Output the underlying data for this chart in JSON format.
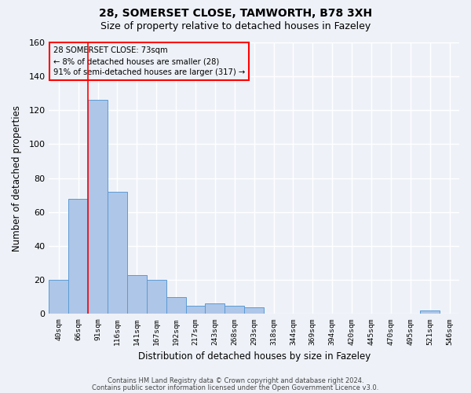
{
  "title1": "28, SOMERSET CLOSE, TAMWORTH, B78 3XH",
  "title2": "Size of property relative to detached houses in Fazeley",
  "xlabel": "Distribution of detached houses by size in Fazeley",
  "ylabel": "Number of detached properties",
  "bins": [
    "40sqm",
    "66sqm",
    "91sqm",
    "116sqm",
    "141sqm",
    "167sqm",
    "192sqm",
    "217sqm",
    "243sqm",
    "268sqm",
    "293sqm",
    "318sqm",
    "344sqm",
    "369sqm",
    "394sqm",
    "420sqm",
    "445sqm",
    "470sqm",
    "495sqm",
    "521sqm",
    "546sqm"
  ],
  "values": [
    20,
    68,
    126,
    72,
    23,
    20,
    10,
    5,
    6,
    5,
    4,
    0,
    0,
    0,
    0,
    0,
    0,
    0,
    0,
    2,
    0
  ],
  "bar_color": "#aec6e8",
  "bar_edge_color": "#5b9bd5",
  "red_line_x": 1.5,
  "annotation_box_text": "28 SOMERSET CLOSE: 73sqm\n← 8% of detached houses are smaller (28)\n91% of semi-detached houses are larger (317) →",
  "ylim": [
    0,
    160
  ],
  "yticks": [
    0,
    20,
    40,
    60,
    80,
    100,
    120,
    140,
    160
  ],
  "footer1": "Contains HM Land Registry data © Crown copyright and database right 2024.",
  "footer2": "Contains public sector information licensed under the Open Government Licence v3.0.",
  "bg_color": "#eef2f8",
  "grid_color": "#ffffff",
  "title1_fontsize": 10,
  "title2_fontsize": 9
}
